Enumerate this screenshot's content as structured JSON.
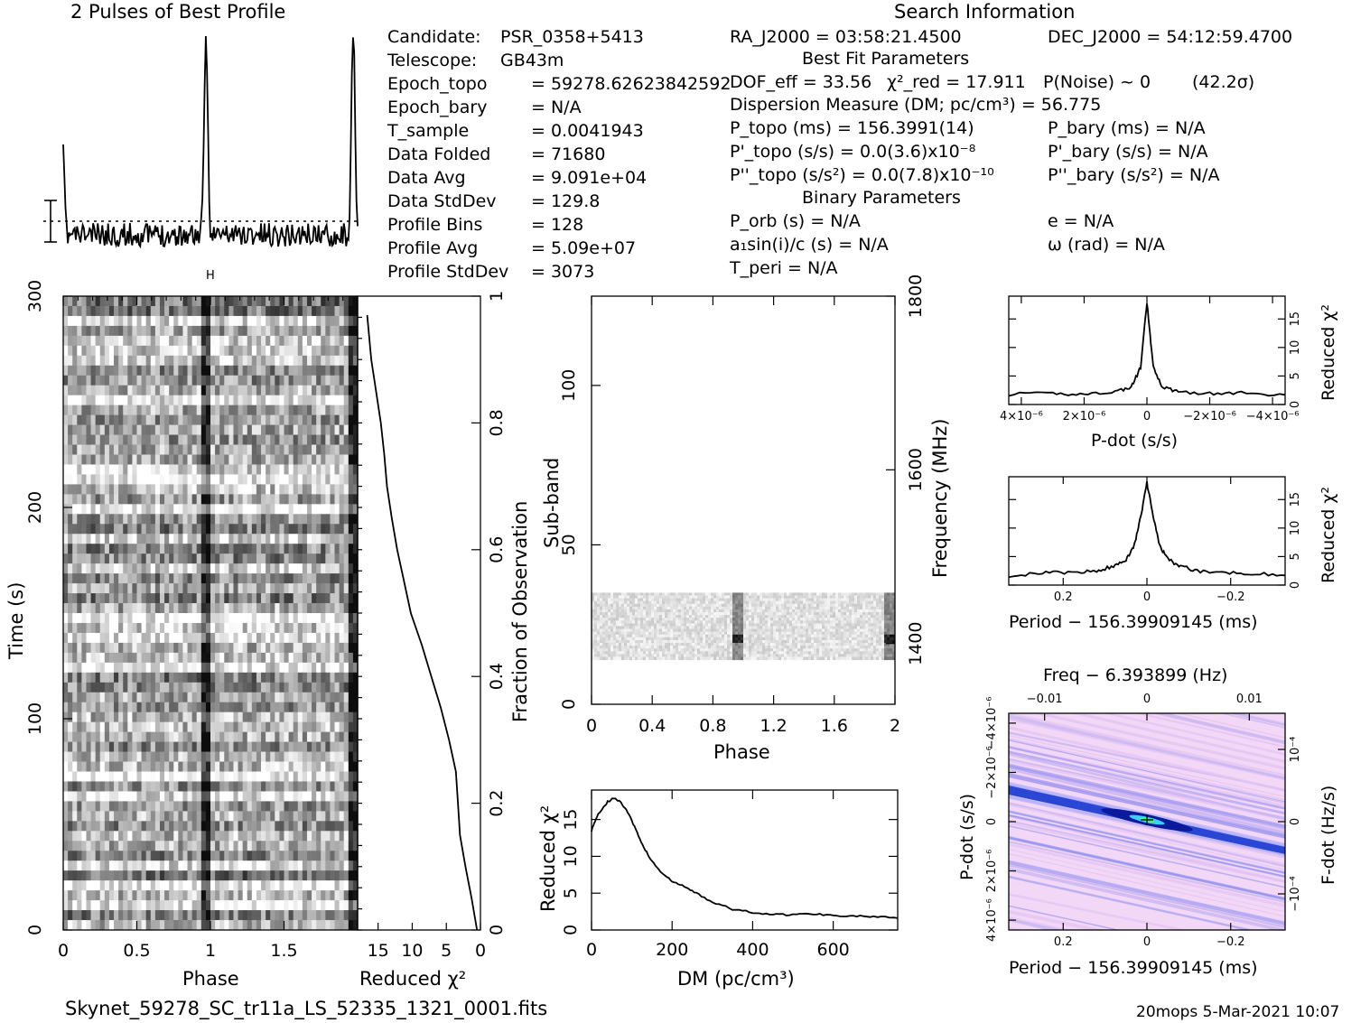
{
  "titles": {
    "profile": "2 Pulses of Best Profile",
    "search_info": "Search Information",
    "best_fit": "Best Fit Parameters",
    "binary": "Binary Parameters"
  },
  "info_left": [
    {
      "label": "Candidate:",
      "value": "PSR_0358+5413"
    },
    {
      "label": "Telescope:",
      "value": "GB43m"
    },
    {
      "label": "Epoch_topo",
      "value": "= 59278.62623842592"
    },
    {
      "label": "Epoch_bary",
      "value": "= N/A"
    },
    {
      "label": "T_sample",
      "value": "= 0.0041943"
    },
    {
      "label": "Data Folded",
      "value": "= 71680"
    },
    {
      "label": "Data Avg",
      "value": "= 9.091e+04"
    },
    {
      "label": "Data StdDev",
      "value": "= 129.8"
    },
    {
      "label": "Profile Bins",
      "value": "= 128"
    },
    {
      "label": "Profile Avg",
      "value": "= 5.09e+07"
    },
    {
      "label": "Profile StdDev",
      "value": "= 3073"
    }
  ],
  "info_mid": {
    "ra": "RA_J2000 = 03:58:21.4500",
    "dec": "DEC_J2000 = 54:12:59.4700",
    "dof": "DOF_eff = 33.56",
    "chi2": "χ²_red = 17.911",
    "pnoise": "P(Noise) ~ 0",
    "sigma": "(42.2σ)",
    "dm": "Dispersion Measure (DM; pc/cm³) = 56.775",
    "ptopo": "P_topo (ms) = 156.3991(14)",
    "pdtopo": "P'_topo (s/s) = 0.0(3.6)x10⁻⁸",
    "pddtopo": "P''_topo (s/s²) = 0.0(7.8)x10⁻¹⁰",
    "pbary": "P_bary (ms) = N/A",
    "pdbary": "P'_bary (s/s) = N/A",
    "pddbary": "P''_bary (s/s²) = N/A",
    "porb": "P_orb (s) = N/A",
    "asini": "a₁sin(i)/c (s) = N/A",
    "tperi": "T_peri = N/A",
    "ecc": "e = N/A",
    "omega": "ω (rad) = N/A"
  },
  "axis_labels": {
    "time": "Time (s)",
    "phase": "Phase",
    "reduced_chi2": "Reduced χ²",
    "fraction": "Fraction of Observation",
    "subband": "Sub-band",
    "frequency": "Frequency (MHz)",
    "dm": "DM (pc/cm³)",
    "pdot": "P-dot (s/s)",
    "period": "Period − 156.39909145 (ms)",
    "freq_top": "Freq − 6.393899 (Hz)",
    "fdot": "F-dot (Hz/s)"
  },
  "footer": {
    "filename": "Skynet_59278_SC_tr11a_LS_52335_1321_0001.fits",
    "stamp": "20mops  5-Mar-2021 10:07"
  },
  "chart_data": [
    {
      "type": "line",
      "title": "2 Pulses of Best Profile",
      "x_range": [
        0,
        2
      ],
      "peak_phases": [
        0.97,
        1.97
      ],
      "description_values": {
        "bins": 128,
        "profile_avg": 50900000.0,
        "profile_stddev": 3073
      }
    },
    {
      "type": "heatmap",
      "xlabel": "Phase",
      "ylabel": "Time (s)",
      "xlim": [
        0,
        2
      ],
      "ylim": [
        0,
        300
      ],
      "x_ticks": [
        "0",
        "0.5",
        "1",
        "1.5"
      ],
      "y_ticks": [
        "0",
        "100",
        "200",
        "300"
      ],
      "pulse_phase": 0.97
    },
    {
      "type": "line",
      "xlabel": "Reduced χ²",
      "ylabel": "Fraction of Observation",
      "xlim": [
        18,
        0
      ],
      "ylim": [
        0,
        1
      ],
      "x_ticks": [
        "15",
        "10",
        "5",
        "0"
      ],
      "y_ticks": [
        "0",
        "0.2",
        "0.4",
        "0.6",
        "0.8",
        "1"
      ],
      "x": [
        0.5,
        1.3,
        2.2,
        3.0,
        3.3,
        3.6,
        4.6,
        5.8,
        7.2,
        8.6,
        10.2,
        11.2,
        12.2,
        13.0,
        13.7,
        14.1,
        14.6,
        15.3,
        16.0,
        16.6
      ],
      "y": [
        0.0,
        0.05,
        0.1,
        0.15,
        0.2,
        0.25,
        0.3,
        0.35,
        0.4,
        0.45,
        0.5,
        0.55,
        0.6,
        0.65,
        0.7,
        0.75,
        0.8,
        0.85,
        0.9,
        0.97
      ]
    },
    {
      "type": "heatmap",
      "xlabel": "Phase",
      "ylabel": "Sub-band",
      "y2label": "Frequency (MHz)",
      "xlim": [
        0,
        2
      ],
      "ylim": [
        0,
        128
      ],
      "x_ticks": [
        "0",
        "0.4",
        "0.8",
        "1.2",
        "1.6",
        "2"
      ],
      "y_ticks": [
        "0",
        "50",
        "100"
      ],
      "y2_ticks": [
        "1400",
        "1600",
        "1800"
      ],
      "populated_subbands": [
        14,
        35
      ],
      "pulse_phase": 0.97
    },
    {
      "type": "line",
      "xlabel": "DM (pc/cm³)",
      "ylabel": "Reduced χ²",
      "xlim": [
        0,
        760
      ],
      "ylim": [
        0,
        19
      ],
      "x_ticks": [
        "0",
        "200",
        "400",
        "600"
      ],
      "y_ticks": [
        "0",
        "5",
        "10",
        "15"
      ],
      "x": [
        0,
        10,
        20,
        40,
        56,
        70,
        90,
        110,
        130,
        150,
        175,
        200,
        230,
        260,
        300,
        350,
        400,
        450,
        500,
        550,
        600,
        650,
        700,
        760
      ],
      "y": [
        13.5,
        15.0,
        16.0,
        17.4,
        17.9,
        17.5,
        16.0,
        13.6,
        11.2,
        9.3,
        7.7,
        6.6,
        5.9,
        5.0,
        3.8,
        2.8,
        2.4,
        2.1,
        2.1,
        2.2,
        2.0,
        1.9,
        1.8,
        1.6
      ]
    },
    {
      "type": "line",
      "xlabel": "P-dot (s/s)",
      "ylabel": "Reduced χ²",
      "xlim": [
        4.4e-06,
        -4.4e-06
      ],
      "ylim": [
        0,
        19
      ],
      "x_ticks": [
        "4×10⁻⁶",
        "2×10⁻⁶",
        "0",
        "−2×10⁻⁶",
        "−4×10⁻⁶"
      ],
      "y_ticks": [
        "0",
        "5",
        "10",
        "15"
      ],
      "x": [
        4.4e-06,
        3e-06,
        2e-06,
        1e-06,
        5e-07,
        2e-07,
        0,
        -2e-07,
        -5e-07,
        -1e-06,
        -2e-06,
        -3e-06,
        -4.4e-06
      ],
      "y": [
        1.8,
        1.9,
        1.8,
        2.3,
        3.0,
        6.5,
        17.9,
        6.5,
        3.0,
        2.3,
        1.9,
        2.0,
        1.7
      ]
    },
    {
      "type": "line",
      "xlabel": "Period − 156.39909145 (ms)",
      "ylabel": "Reduced χ²",
      "xlim": [
        0.33,
        -0.33
      ],
      "ylim": [
        0,
        19
      ],
      "x_ticks": [
        "0.2",
        "0",
        "−0.2"
      ],
      "y_ticks": [
        "0",
        "5",
        "10",
        "15"
      ],
      "x": [
        0.33,
        0.25,
        0.18,
        0.12,
        0.08,
        0.05,
        0.03,
        0.015,
        0,
        -0.015,
        -0.03,
        -0.05,
        -0.08,
        -0.12,
        -0.18,
        -0.25,
        -0.33
      ],
      "y": [
        1.7,
        2.1,
        2.2,
        2.5,
        3.3,
        4.5,
        7.0,
        12.0,
        17.9,
        12.0,
        7.0,
        4.5,
        3.3,
        2.5,
        2.2,
        2.1,
        1.7
      ]
    },
    {
      "type": "heatmap",
      "xlabel": "Period − 156.39909145 (ms)",
      "ylabel": "P-dot (s/s)",
      "x2label": "Freq − 6.393899 (Hz)",
      "y2label": "F-dot (Hz/s)",
      "xlim": [
        0.33,
        -0.33
      ],
      "ylim": [
        4.4e-06,
        -4.4e-06
      ],
      "x_ticks": [
        "0.2",
        "0",
        "−0.2"
      ],
      "x2_ticks": [
        "−0.01",
        "0",
        "0.01"
      ],
      "y_ticks": [
        "4×10⁻⁶",
        "2×10⁻⁶",
        "0",
        "−2×10⁻⁶",
        "−4×10⁻⁶"
      ],
      "y2_ticks": [
        "10⁻⁴",
        "0",
        "−10⁻⁴"
      ],
      "peak": [
        0,
        0
      ]
    }
  ],
  "colors": {
    "ridge_dark": "#0a1a9a",
    "ridge_mid": "#3a5ae0",
    "bg": "#f2d8f6",
    "peak": "#3cff6c"
  }
}
